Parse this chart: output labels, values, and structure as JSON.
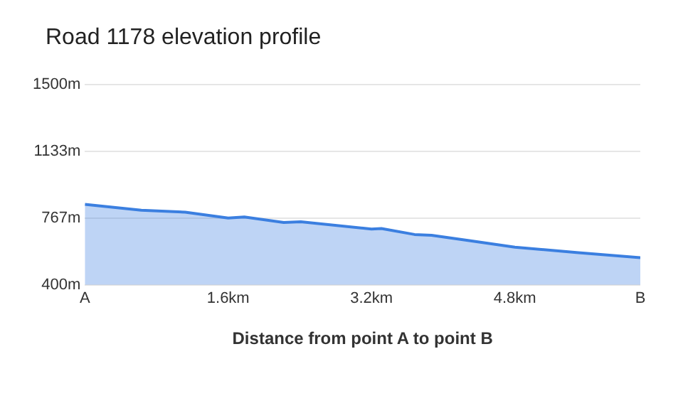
{
  "chart_data": {
    "type": "area",
    "title": "Road 1178 elevation profile",
    "xlabel": "Distance from point A to point B",
    "x": [
      0,
      0.63,
      1.12,
      1.6,
      1.78,
      2.22,
      2.41,
      3.2,
      3.31,
      3.68,
      3.87,
      4.29,
      4.8,
      5.51,
      6.2
    ],
    "series": [
      {
        "color": "#3b7fe0",
        "values": [
          843,
          810,
          800,
          767,
          773,
          743,
          747,
          707,
          710,
          677,
          673,
          643,
          607,
          577,
          550
        ]
      }
    ],
    "xlim": [
      0,
      6.2
    ],
    "xticks": [
      {
        "value": 0,
        "label": "A"
      },
      {
        "value": 1.6,
        "label": "1.6km"
      },
      {
        "value": 3.2,
        "label": "3.2km"
      },
      {
        "value": 4.8,
        "label": "4.8km"
      },
      {
        "value": 6.2,
        "label": "B"
      }
    ],
    "ylim": [
      400,
      1500
    ],
    "yticks": [
      {
        "value": 400,
        "label": "400m"
      },
      {
        "value": 767,
        "label": "767m"
      },
      {
        "value": 1133,
        "label": "1133m"
      },
      {
        "value": 1500,
        "label": "1500m"
      }
    ],
    "grid": "y",
    "legend": false
  }
}
